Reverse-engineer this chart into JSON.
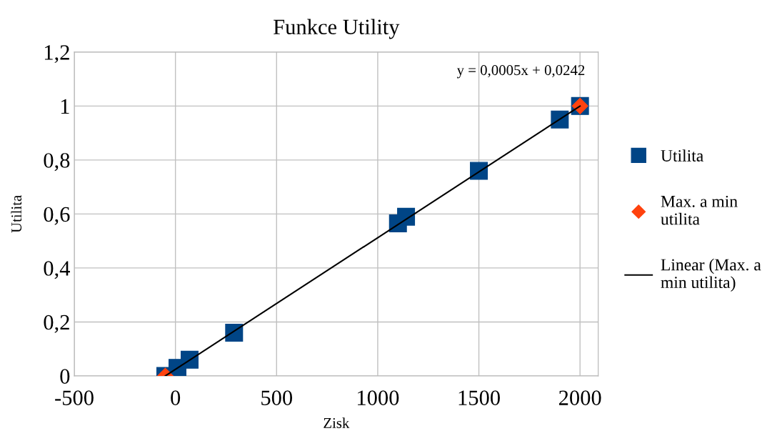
{
  "chart_data": {
    "type": "scatter",
    "title": "Funkce Utility",
    "xlabel": "Zisk",
    "ylabel": "Utilita",
    "annotations": [
      "y = 0,0005x + 0,0242"
    ],
    "series": [
      {
        "name": "Utilita",
        "color": "#004586",
        "marker": "square",
        "x": [
          -50,
          10,
          70,
          290,
          1100,
          1140,
          1500,
          1900,
          2000
        ],
        "values": [
          0,
          0.03,
          0.06,
          0.16,
          0.565,
          0.59,
          0.76,
          0.95,
          1
        ]
      },
      {
        "name": "Max. a min utilita",
        "color": "#ff420e",
        "marker": "diamond",
        "x": [
          -50,
          2000
        ],
        "values": [
          0,
          1
        ]
      },
      {
        "name": "Linear (Max. a min utilita)",
        "type": "line",
        "color": "#000000",
        "line_style": "solid",
        "marker": "none",
        "x": [
          -50,
          2000
        ],
        "values": [
          0,
          1
        ]
      }
    ],
    "xlim": [
      -500,
      2090
    ],
    "xticks": [
      -500,
      0,
      500,
      1000,
      1500,
      2000
    ],
    "ylim": [
      0,
      1.2
    ],
    "yticks": [
      {
        "value": 0,
        "label": "0"
      },
      {
        "value": 0.2,
        "label": "0,2"
      },
      {
        "value": 0.4,
        "label": "0,4"
      },
      {
        "value": 0.6,
        "label": "0,6"
      },
      {
        "value": 0.8,
        "label": "0,8"
      },
      {
        "value": 1,
        "label": "1"
      },
      {
        "value": 1.2,
        "label": "1,2"
      }
    ],
    "grid": true,
    "legend": "right"
  }
}
